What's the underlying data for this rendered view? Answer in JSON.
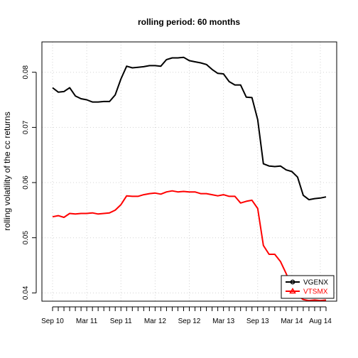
{
  "chart_data": {
    "type": "line",
    "title": "rolling period: 60 months",
    "xlabel": "",
    "ylabel": "rolling volatility of the cc returns",
    "x_ticks": [
      "Sep 10",
      "Mar 11",
      "Sep 11",
      "Mar 12",
      "Sep 12",
      "Mar 13",
      "Sep 13",
      "Mar 14",
      "Aug 14"
    ],
    "y_ticks": [
      "0.04",
      "0.05",
      "0.06",
      "0.07",
      "0.08"
    ],
    "ylim": [
      0.0385,
      0.0855
    ],
    "x_start": "Sep 10",
    "x_end": "Aug 14",
    "grid": true,
    "legend_position": "bottom-right",
    "series": [
      {
        "name": "VGENX",
        "color": "#000000",
        "marker": "circle",
        "values": [
          0.0772,
          0.0764,
          0.0765,
          0.0772,
          0.0757,
          0.0752,
          0.075,
          0.0746,
          0.0746,
          0.0747,
          0.0747,
          0.0759,
          0.0788,
          0.0811,
          0.0808,
          0.0809,
          0.081,
          0.0812,
          0.0812,
          0.0811,
          0.0823,
          0.0826,
          0.0826,
          0.0827,
          0.0821,
          0.0819,
          0.0817,
          0.0814,
          0.0805,
          0.0798,
          0.0797,
          0.0783,
          0.0777,
          0.0777,
          0.0755,
          0.0754,
          0.0714,
          0.0634,
          0.063,
          0.0629,
          0.063,
          0.0623,
          0.062,
          0.061,
          0.0577,
          0.0569,
          0.0571,
          0.0572,
          0.0574
        ]
      },
      {
        "name": "VTSMX",
        "color": "#ff0000",
        "marker": "triangle",
        "values": [
          0.0538,
          0.054,
          0.0537,
          0.0544,
          0.0543,
          0.0544,
          0.0544,
          0.0545,
          0.0543,
          0.0544,
          0.0545,
          0.055,
          0.056,
          0.0576,
          0.0575,
          0.0575,
          0.0578,
          0.058,
          0.0581,
          0.0579,
          0.0583,
          0.0585,
          0.0583,
          0.0584,
          0.0583,
          0.0583,
          0.058,
          0.058,
          0.0578,
          0.0576,
          0.0578,
          0.0575,
          0.0575,
          0.0563,
          0.0566,
          0.0568,
          0.0553,
          0.0486,
          0.047,
          0.047,
          0.0457,
          0.0435,
          0.041,
          0.0395,
          0.0388,
          0.0386,
          0.0387,
          0.0386,
          0.0387
        ]
      }
    ]
  }
}
